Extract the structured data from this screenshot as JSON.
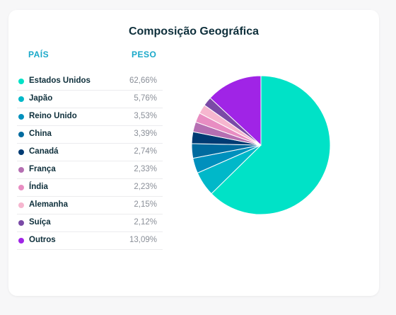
{
  "title": "Composição Geográfica",
  "headers": {
    "country": "PAÍS",
    "weight": "PESO"
  },
  "rows": [
    {
      "name": "Estados Unidos",
      "value": "62,66%",
      "color": "#00e2c7"
    },
    {
      "name": "Japão",
      "value": "5,76%",
      "color": "#00b8c9"
    },
    {
      "name": "Reino Unido",
      "value": "3,53%",
      "color": "#0090bd"
    },
    {
      "name": "China",
      "value": "3,39%",
      "color": "#006b9f"
    },
    {
      "name": "Canadá",
      "value": "2,74%",
      "color": "#003b73"
    },
    {
      "name": "França",
      "value": "2,33%",
      "color": "#b56fb2"
    },
    {
      "name": "Índia",
      "value": "2,23%",
      "color": "#e88dc2"
    },
    {
      "name": "Alemanha",
      "value": "2,15%",
      "color": "#f6b6cf"
    },
    {
      "name": "Suíça",
      "value": "2,12%",
      "color": "#7a4aa6"
    },
    {
      "name": "Outros",
      "value": "13,09%",
      "color": "#a024e6"
    }
  ],
  "chart_data": {
    "type": "pie",
    "categories": [
      "Estados Unidos",
      "Japão",
      "Reino Unido",
      "China",
      "Canadá",
      "França",
      "Índia",
      "Alemanha",
      "Suíça",
      "Outros"
    ],
    "values": [
      62.66,
      5.76,
      3.53,
      3.39,
      2.74,
      2.33,
      2.23,
      2.15,
      2.12,
      13.09
    ],
    "colors": [
      "#00e2c7",
      "#00b8c9",
      "#0090bd",
      "#006b9f",
      "#003b73",
      "#b56fb2",
      "#e88dc2",
      "#f6b6cf",
      "#7a4aa6",
      "#a024e6"
    ],
    "title": "Composição Geográfica"
  }
}
